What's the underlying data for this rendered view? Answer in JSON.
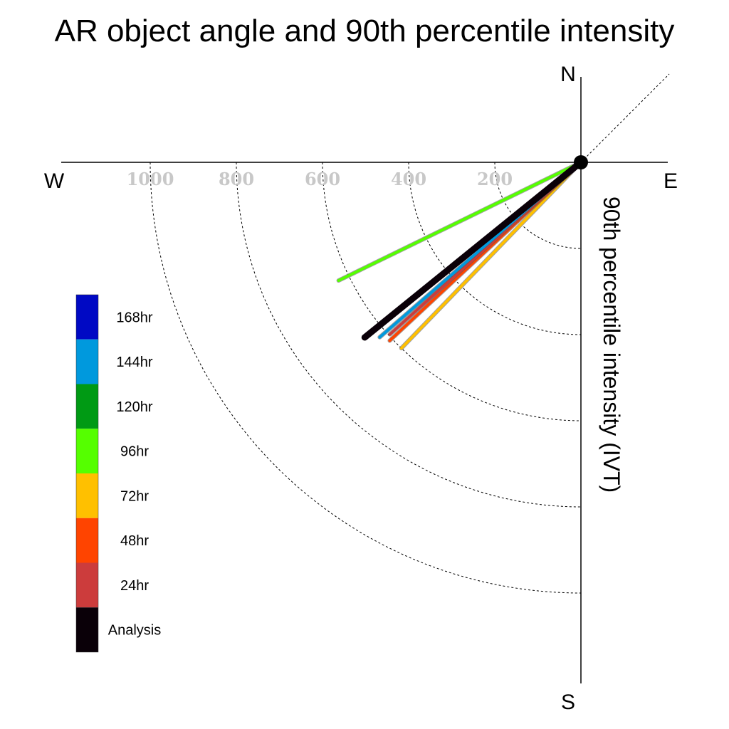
{
  "chart_data": {
    "type": "polar-vector",
    "title": "AR object angle and 90th percentile intensity",
    "ylabel": "90th percentile intensity (IVT)",
    "compass": {
      "north": "N",
      "south": "S",
      "east": "E",
      "west": "W"
    },
    "radial_rings": [
      200,
      400,
      600,
      800,
      1000
    ],
    "radial_tick_labels": [
      "200",
      "400",
      "600",
      "800",
      "1000"
    ],
    "series": [
      {
        "name": "96hr",
        "color": "#55ff00",
        "angle_deg": 244,
        "intensity": 626
      },
      {
        "name": "72hr",
        "color": "#ffc000",
        "angle_deg": 224,
        "intensity": 600
      },
      {
        "name": "48hr",
        "color": "#ff4400",
        "angle_deg": 227,
        "intensity": 607
      },
      {
        "name": "24hr",
        "color": "#cc3c3c",
        "angle_deg": 228,
        "intensity": 597
      },
      {
        "name": "144hr",
        "color": "#0099dd",
        "angle_deg": 229,
        "intensity": 619
      },
      {
        "name": "Analysis",
        "color": "#0a0008",
        "angle_deg": 231,
        "intensity": 646
      }
    ],
    "legend": [
      {
        "label": "168hr",
        "color": "#0009c4"
      },
      {
        "label": "144hr",
        "color": "#0099dd"
      },
      {
        "label": "120hr",
        "color": "#009a14"
      },
      {
        "label": "96hr",
        "color": "#55ff00"
      },
      {
        "label": "72hr",
        "color": "#ffc000"
      },
      {
        "label": "48hr",
        "color": "#ff4400"
      },
      {
        "label": "24hr",
        "color": "#cc3c3c"
      },
      {
        "label": "Analysis",
        "color": "#0a0008"
      }
    ]
  }
}
